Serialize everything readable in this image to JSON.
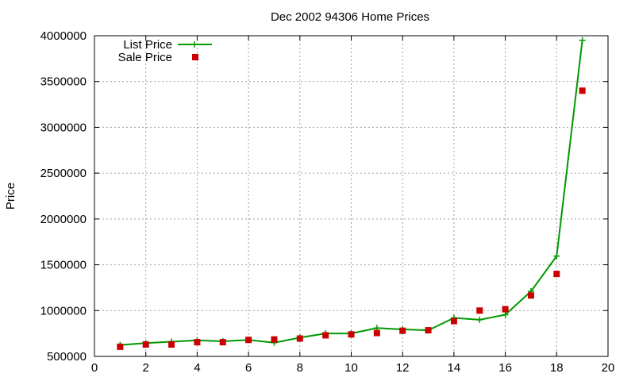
{
  "chart_data": {
    "type": "line",
    "title": "Dec 2002 94306 Home Prices",
    "xlabel": "",
    "ylabel": "Price",
    "xlim": [
      0,
      20
    ],
    "ylim": [
      500000,
      4000000
    ],
    "x_ticks": [
      0,
      2,
      4,
      6,
      8,
      10,
      12,
      14,
      16,
      18,
      20
    ],
    "y_ticks": [
      500000,
      1000000,
      1500000,
      2000000,
      2500000,
      3000000,
      3500000,
      4000000
    ],
    "grid": true,
    "legend_position": "top-left",
    "series": [
      {
        "name": "List Price",
        "style": "line-with-plus-markers",
        "color": "#009900",
        "x": [
          1,
          2,
          3,
          4,
          5,
          6,
          7,
          8,
          9,
          10,
          11,
          12,
          13,
          14,
          15,
          16,
          17,
          18,
          19
        ],
        "y": [
          625000,
          645000,
          660000,
          675000,
          665000,
          680000,
          650000,
          705000,
          750000,
          750000,
          810000,
          795000,
          785000,
          920000,
          900000,
          955000,
          1210000,
          1595000,
          3950000
        ]
      },
      {
        "name": "Sale Price",
        "style": "square-markers",
        "color": "#cc0000",
        "x": [
          1,
          2,
          3,
          4,
          5,
          6,
          7,
          8,
          9,
          10,
          11,
          12,
          13,
          14,
          15,
          16,
          17,
          18,
          19
        ],
        "y": [
          605000,
          630000,
          630000,
          655000,
          655000,
          680000,
          685000,
          695000,
          730000,
          740000,
          755000,
          780000,
          785000,
          885000,
          1000000,
          1015000,
          1165000,
          1400000,
          3400000
        ]
      }
    ]
  }
}
